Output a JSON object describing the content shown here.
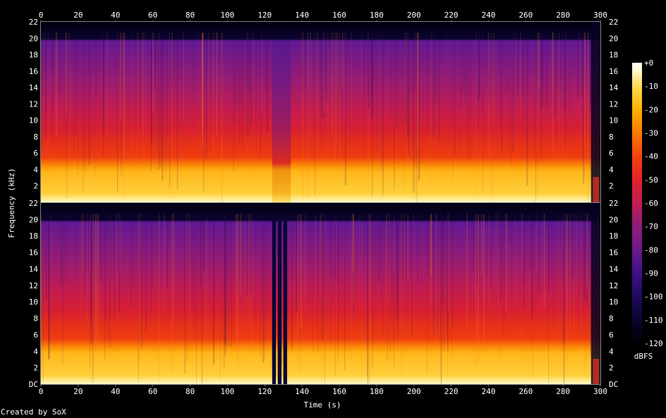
{
  "chart_data": {
    "type": "heatmap",
    "title": "",
    "xlabel": "Time (s)",
    "ylabel": "Frequency (kHz)",
    "x_ticks": [
      "0",
      "20",
      "40",
      "60",
      "80",
      "100",
      "120",
      "140",
      "160",
      "180",
      "200",
      "220",
      "240",
      "260",
      "280",
      "300"
    ],
    "y_ticks": [
      "DC",
      "2",
      "4",
      "6",
      "8",
      "10",
      "12",
      "14",
      "16",
      "18",
      "20",
      "22"
    ],
    "top_channel_ticks": [
      "2",
      "4",
      "6",
      "8",
      "10",
      "12",
      "14",
      "16",
      "18",
      "20",
      "22"
    ],
    "xlim": [
      0,
      300
    ],
    "ylim_khz": [
      0,
      22
    ],
    "channels": [
      {
        "energy_ceiling_khz": 20,
        "dim_regions_s": [
          [
            124,
            134
          ]
        ]
      },
      {
        "energy_ceiling_khz": 20,
        "gap_regions_s": [
          [
            124,
            126
          ],
          [
            127,
            129
          ],
          [
            130,
            132
          ]
        ]
      }
    ],
    "colorbar": {
      "unit": "dBFS",
      "ticks": [
        "+0",
        "-10",
        "-20",
        "-30",
        "-40",
        "-50",
        "-60",
        "-70",
        "-80",
        "-90",
        "-100",
        "-110",
        "-120"
      ],
      "range_dbfs": [
        -120,
        0
      ]
    },
    "credit": "Created by SoX",
    "colors": {
      "background": "#000000",
      "axis": "#7f7f7f",
      "text": "#ffffff",
      "scale": [
        "#000000",
        "#0a0430",
        "#200a60",
        "#40108a",
        "#6a1a8e",
        "#921c7a",
        "#c01d52",
        "#e0222a",
        "#f2400d",
        "#fb7a05",
        "#ffb000",
        "#ffd84a",
        "#fff8c8",
        "#ffffff"
      ]
    }
  }
}
